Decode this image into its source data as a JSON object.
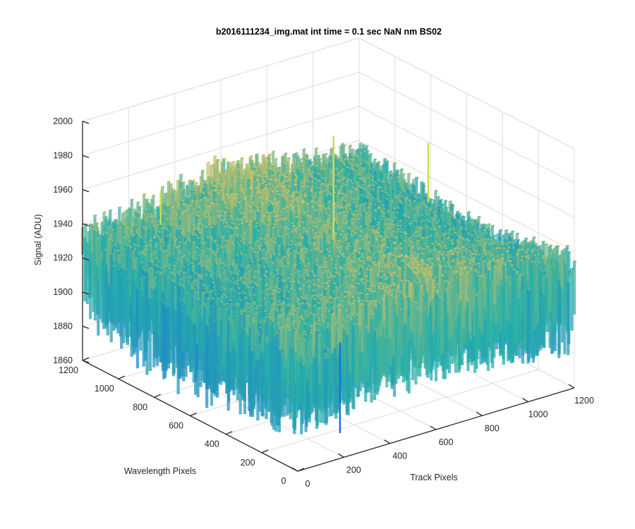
{
  "chart_data": {
    "type": "surface",
    "title": "b2016111234_img.mat int time = 0.1 sec  NaN nm BS02",
    "xlabel": "Track Pixels",
    "ylabel": "Wavelength Pixels",
    "zlabel": "Signal (ADU)",
    "x_ticks": [
      "0",
      "200",
      "400",
      "600",
      "800",
      "1000",
      "1200"
    ],
    "y_ticks": [
      "0",
      "200",
      "400",
      "600",
      "800",
      "1000",
      "1200"
    ],
    "z_ticks": [
      "1860",
      "1880",
      "1900",
      "1920",
      "1940",
      "1960",
      "1980",
      "2000"
    ],
    "xlim": [
      0,
      1200
    ],
    "ylim": [
      0,
      1200
    ],
    "zlim": [
      1860,
      2000
    ],
    "grid": true,
    "colormap": "parula",
    "colors": {
      "low": "#1e6fd9",
      "mid": "#27b0a8",
      "high": "#d8c060"
    },
    "surface_profile": {
      "mean_signal": 1928,
      "noise_peak_to_peak": 60,
      "max_spike": 1990,
      "min_dip": 1862,
      "note_grid": [
        [
          1930,
          1935,
          1940,
          1935,
          1930
        ],
        [
          1925,
          1930,
          1935,
          1930,
          1922
        ],
        [
          1922,
          1928,
          1935,
          1928,
          1920
        ],
        [
          1925,
          1932,
          1940,
          1930,
          1925
        ],
        [
          1930,
          1935,
          1945,
          1935,
          1930
        ]
      ]
    }
  }
}
